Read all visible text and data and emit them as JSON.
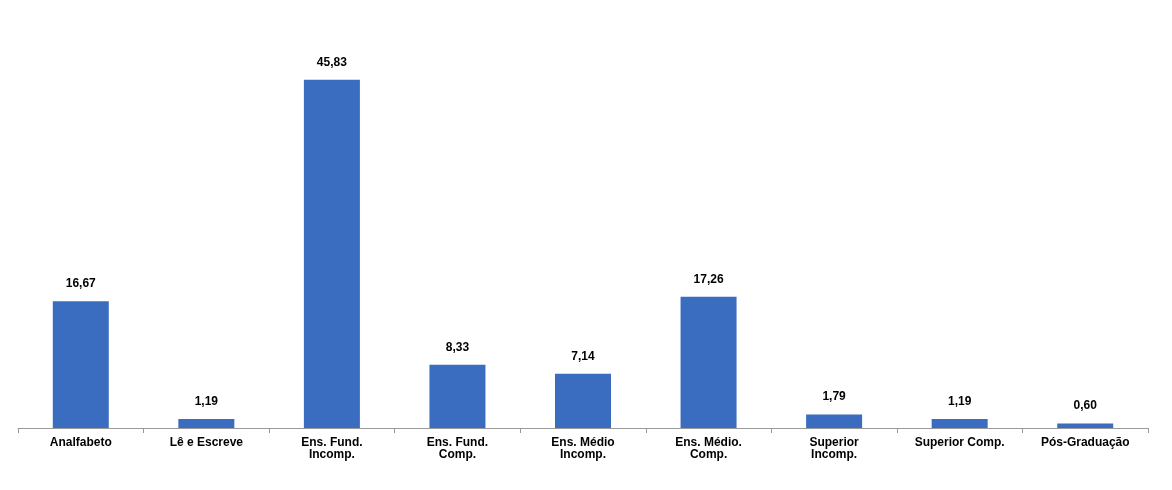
{
  "chart_data": {
    "type": "bar",
    "categories": [
      "Analfabeto",
      "Lê e Escreve",
      "Ens. Fund.\nIncomp.",
      "Ens. Fund.\nComp.",
      "Ens. Médio\nIncomp.",
      "Ens. Médio.\nComp.",
      "Superior\nIncomp.",
      "Superior Comp.",
      "Pós-Graduação"
    ],
    "values": [
      16.67,
      1.19,
      45.83,
      8.33,
      7.14,
      17.26,
      1.79,
      1.19,
      0.6
    ],
    "value_labels": [
      "16,67",
      "1,19",
      "45,83",
      "8,33",
      "7,14",
      "17,26",
      "1,79",
      "1,19",
      "0,60"
    ],
    "color": "#3a6cc0"
  }
}
